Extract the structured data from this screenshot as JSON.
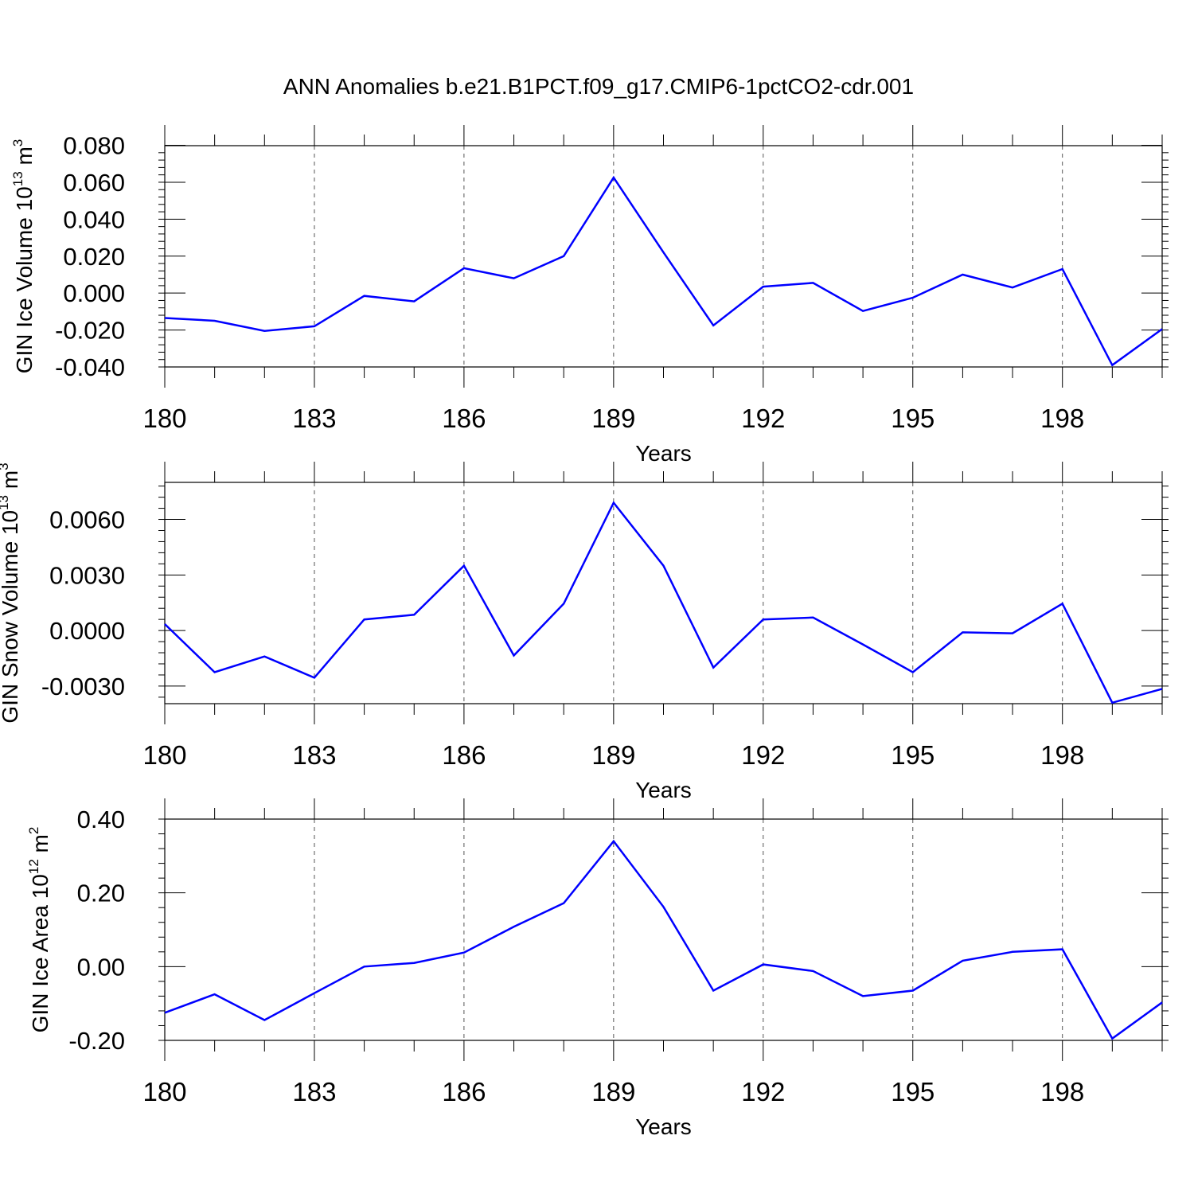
{
  "title": "ANN Anomalies b.e21.B1PCT.f09_g17.CMIP6-1pctCO2-cdr.001",
  "colors": {
    "series": "#0000ff",
    "axis": "#000000",
    "grid": "#555555"
  },
  "chart_data": [
    {
      "type": "line",
      "xlabel": "Years",
      "ylabel": {
        "text": "GIN Ice Volume 10",
        "sup": "13",
        "unit": " m",
        "unit_sup": "3"
      },
      "x": [
        180,
        181,
        182,
        183,
        184,
        185,
        186,
        187,
        188,
        189,
        190,
        191,
        192,
        193,
        194,
        195,
        196,
        197,
        198,
        199,
        200
      ],
      "values": [
        -0.0135,
        -0.015,
        -0.0205,
        -0.018,
        -0.0015,
        -0.0045,
        0.0135,
        0.008,
        0.02,
        0.0625,
        0.022,
        -0.0175,
        0.0035,
        0.0055,
        -0.0097,
        -0.0025,
        0.01,
        0.003,
        0.013,
        -0.039,
        -0.0195
      ],
      "xlim": [
        180,
        200
      ],
      "ylim": [
        -0.04,
        0.0798
      ],
      "xticks": [
        180,
        183,
        186,
        189,
        192,
        195,
        198
      ],
      "yticks": [
        -0.04,
        -0.02,
        0.0,
        0.02,
        0.04,
        0.06,
        0.08
      ],
      "ytick_labels": [
        "-0.040",
        "-0.020",
        "0.000",
        "0.020",
        "0.040",
        "0.060",
        "0.080"
      ],
      "grid": "vertical dashed at major x ticks"
    },
    {
      "type": "line",
      "xlabel": "Years",
      "ylabel": {
        "text": "GIN Snow Volume 10",
        "sup": "13",
        "unit": " m",
        "unit_sup": "3"
      },
      "x": [
        180,
        181,
        182,
        183,
        184,
        185,
        186,
        187,
        188,
        189,
        190,
        191,
        192,
        193,
        194,
        195,
        196,
        197,
        198,
        199,
        200
      ],
      "values": [
        0.00035,
        -0.00225,
        -0.0014,
        -0.00255,
        0.0006,
        0.00085,
        0.0035,
        -0.00135,
        0.00145,
        0.0069,
        0.0035,
        -0.002,
        0.0006,
        0.0007,
        -0.00075,
        -0.00225,
        -0.0001,
        -0.00015,
        0.00145,
        -0.0039,
        -0.00315
      ],
      "xlim": [
        180,
        200
      ],
      "ylim": [
        -0.00395,
        0.008
      ],
      "xticks": [
        180,
        183,
        186,
        189,
        192,
        195,
        198
      ],
      "yticks": [
        -0.003,
        0.0,
        0.003,
        0.006
      ],
      "ytick_labels": [
        "-0.0030",
        "0.0000",
        "0.0030",
        "0.0060"
      ],
      "grid": "vertical dashed at major x ticks"
    },
    {
      "type": "line",
      "xlabel": "Years",
      "ylabel": {
        "text": "GIN Ice Area 10",
        "sup": "12",
        "unit": " m",
        "unit_sup": "2"
      },
      "x": [
        180,
        181,
        182,
        183,
        184,
        185,
        186,
        187,
        188,
        189,
        190,
        191,
        192,
        193,
        194,
        195,
        196,
        197,
        198,
        199,
        200
      ],
      "values": [
        -0.125,
        -0.075,
        -0.145,
        -0.072,
        0.0,
        0.01,
        0.038,
        0.108,
        0.172,
        0.34,
        0.162,
        -0.065,
        0.006,
        -0.012,
        -0.08,
        -0.065,
        0.016,
        0.04,
        0.047,
        -0.195,
        -0.097
      ],
      "xlim": [
        180,
        200
      ],
      "ylim": [
        -0.2,
        0.4
      ],
      "xticks": [
        180,
        183,
        186,
        189,
        192,
        195,
        198
      ],
      "yticks": [
        -0.2,
        0.0,
        0.2,
        0.4
      ],
      "ytick_labels": [
        "-0.20",
        "0.00",
        "0.20",
        "0.40"
      ],
      "grid": "vertical dashed at major x ticks"
    }
  ]
}
